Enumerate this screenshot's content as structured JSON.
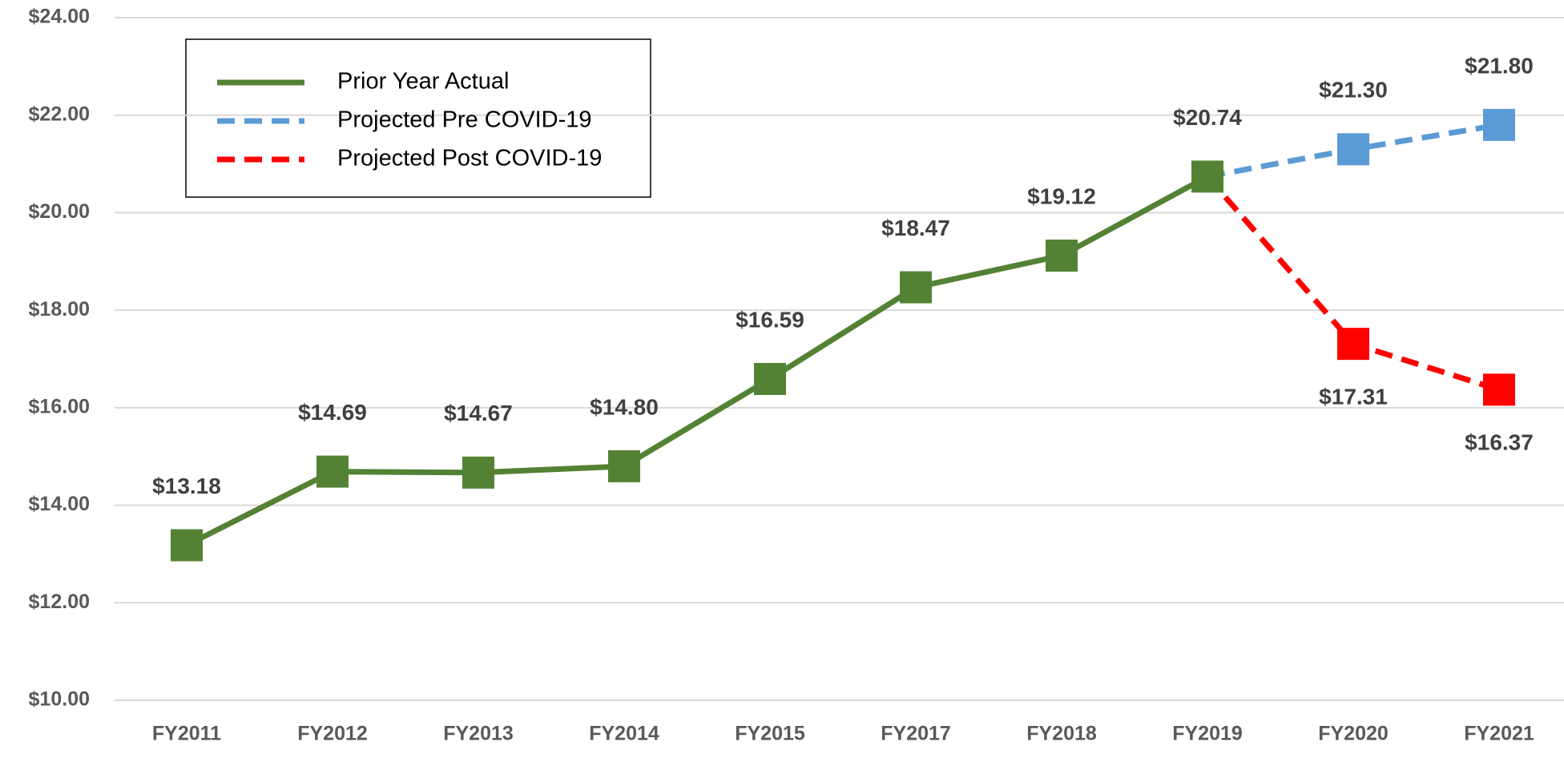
{
  "chart_data": {
    "type": "line",
    "categories": [
      "FY2011",
      "FY2012",
      "FY2013",
      "FY2014",
      "FY2015",
      "FY2017",
      "FY2018",
      "FY2019",
      "FY2020",
      "FY2021"
    ],
    "series": [
      {
        "name": "Prior Year Actual",
        "color": "#548235",
        "dash": false,
        "label_side": "above",
        "values": [
          13.18,
          14.69,
          14.67,
          14.8,
          16.59,
          18.47,
          19.12,
          20.74,
          null,
          null
        ],
        "value_labels": [
          "$13.18",
          "$14.69",
          "$14.67",
          "$14.80",
          "$16.59",
          "$18.47",
          "$19.12",
          "$20.74",
          null,
          null
        ]
      },
      {
        "name": "Projected Pre COVID-19",
        "color": "#5b9bd5",
        "dash": true,
        "label_side": "above",
        "values": [
          null,
          null,
          null,
          null,
          null,
          null,
          null,
          20.74,
          21.3,
          21.8
        ],
        "value_labels": [
          null,
          null,
          null,
          null,
          null,
          null,
          null,
          null,
          "$21.30",
          "$21.80"
        ]
      },
      {
        "name": "Projected Post COVID-19",
        "color": "#ff0000",
        "dash": true,
        "label_side": "below",
        "values": [
          null,
          null,
          null,
          null,
          null,
          null,
          null,
          20.74,
          17.31,
          16.37
        ],
        "value_labels": [
          null,
          null,
          null,
          null,
          null,
          null,
          null,
          null,
          "$17.31",
          "$16.37"
        ]
      }
    ],
    "ylim": [
      10,
      24
    ],
    "yticks": [
      {
        "value": 10,
        "label": "$10.00"
      },
      {
        "value": 12,
        "label": "$12.00"
      },
      {
        "value": 14,
        "label": "$14.00"
      },
      {
        "value": 16,
        "label": "$16.00"
      },
      {
        "value": 18,
        "label": "$18.00"
      },
      {
        "value": 20,
        "label": "$20.00"
      },
      {
        "value": 22,
        "label": "$22.00"
      },
      {
        "value": 24,
        "label": "$24.00"
      }
    ],
    "grid": true,
    "legend": "upper left"
  }
}
